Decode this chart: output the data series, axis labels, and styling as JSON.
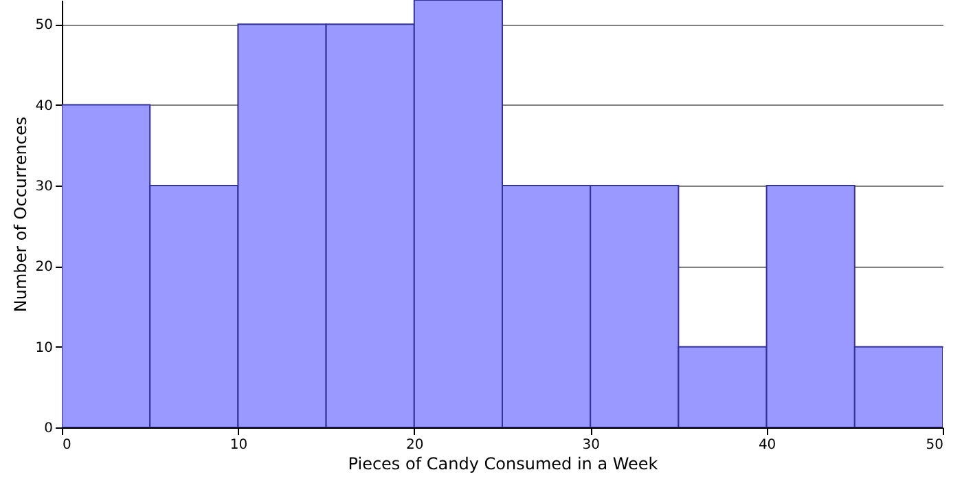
{
  "chart_data": {
    "type": "histogram",
    "xlabel": "Pieces of Candy Consumed in a Week",
    "ylabel": "Number of Occurrences",
    "bins": [
      0,
      5,
      10,
      15,
      20,
      25,
      30,
      35,
      40,
      45,
      50
    ],
    "values": [
      40,
      30,
      50,
      50,
      53,
      30,
      30,
      10,
      30,
      10
    ],
    "color": "#9999ff",
    "xlim": [
      0,
      50
    ],
    "xticks": [
      0,
      10,
      20,
      30,
      40,
      50
    ],
    "ylim": [
      0,
      53
    ],
    "yticks": [
      0,
      10,
      20,
      30,
      40,
      50
    ],
    "grid": "y"
  }
}
